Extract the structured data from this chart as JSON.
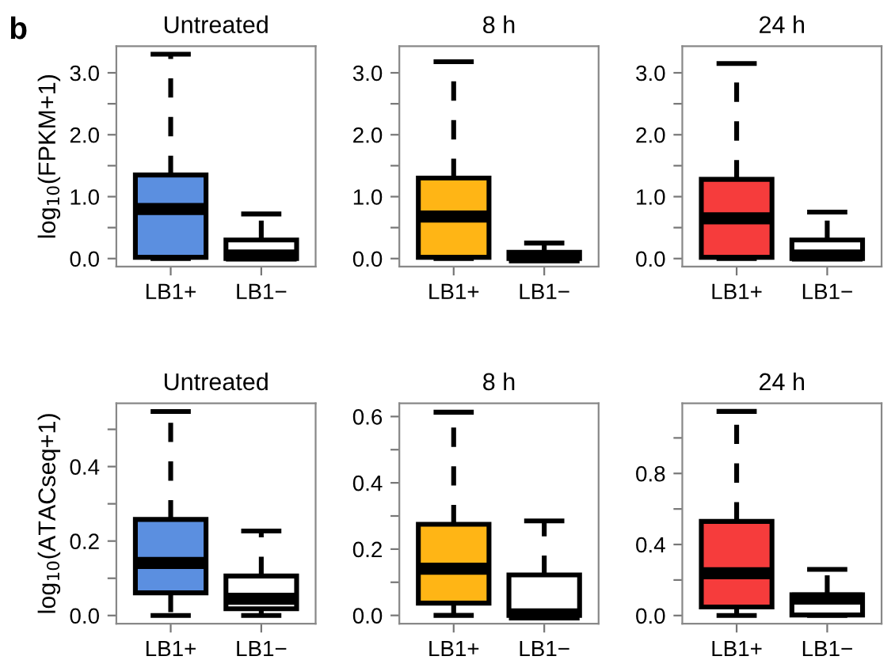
{
  "chart_data": [
    {
      "type": "box",
      "title": "Untreated",
      "ylabel": "log$_{10}$(FPKM+1)",
      "annotations": [
        "b"
      ],
      "categories": [
        "LB1+",
        "LB1−"
      ],
      "colors": [
        "#5b8fe0",
        "#ffffff"
      ],
      "line_style": "dashed",
      "grid": false,
      "boxes": [
        {
          "low": 0,
          "q1": 0.02,
          "median": 0.8,
          "q3": 1.35,
          "high": 3.3
        },
        {
          "low": 0,
          "q1": 0,
          "median": 0.05,
          "q3": 0.3,
          "high": 0.72
        }
      ],
      "ylim": [
        -0.13,
        3.43
      ],
      "yticks": [
        {
          "value": 0,
          "label": "0.0"
        },
        {
          "value": 0.5,
          "label": null
        },
        {
          "value": 1,
          "label": "1.0"
        },
        {
          "value": 1.5,
          "label": null
        },
        {
          "value": 2,
          "label": "2.0"
        },
        {
          "value": 2.5,
          "label": null
        },
        {
          "value": 3,
          "label": "3.0"
        }
      ]
    },
    {
      "type": "box",
      "title": "8 h",
      "categories": [
        "LB1+",
        "LB1−"
      ],
      "colors": [
        "#ffb515",
        "#ffffff"
      ],
      "line_style": "dashed",
      "grid": false,
      "boxes": [
        {
          "low": 0,
          "q1": 0.02,
          "median": 0.68,
          "q3": 1.3,
          "high": 3.18
        },
        {
          "low": 0,
          "q1": 0,
          "median": 0.02,
          "q3": 0.1,
          "high": 0.25
        }
      ],
      "ylim": [
        -0.13,
        3.43
      ],
      "yticks": [
        {
          "value": 0,
          "label": "0.0"
        },
        {
          "value": 0.5,
          "label": null
        },
        {
          "value": 1,
          "label": "1.0"
        },
        {
          "value": 1.5,
          "label": null
        },
        {
          "value": 2,
          "label": "2.0"
        },
        {
          "value": 2.5,
          "label": null
        },
        {
          "value": 3,
          "label": "3.0"
        }
      ]
    },
    {
      "type": "box",
      "title": "24 h",
      "categories": [
        "LB1+",
        "LB1−"
      ],
      "colors": [
        "#f63c3c",
        "#ffffff"
      ],
      "line_style": "dashed",
      "grid": false,
      "boxes": [
        {
          "low": 0,
          "q1": 0.02,
          "median": 0.65,
          "q3": 1.28,
          "high": 3.15
        },
        {
          "low": 0,
          "q1": 0,
          "median": 0.05,
          "q3": 0.3,
          "high": 0.75
        }
      ],
      "ylim": [
        -0.13,
        3.43
      ],
      "yticks": [
        {
          "value": 0,
          "label": "0.0"
        },
        {
          "value": 0.5,
          "label": null
        },
        {
          "value": 1,
          "label": "1.0"
        },
        {
          "value": 1.5,
          "label": null
        },
        {
          "value": 2,
          "label": "2.0"
        },
        {
          "value": 2.5,
          "label": null
        },
        {
          "value": 3,
          "label": "3.0"
        }
      ]
    },
    {
      "type": "box",
      "title": "Untreated",
      "ylabel": "log$_{10}$(ATACseq+1)",
      "categories": [
        "LB1+",
        "LB1−"
      ],
      "colors": [
        "#5b8fe0",
        "#ffffff"
      ],
      "line_style": "dashed",
      "grid": false,
      "boxes": [
        {
          "low": 0,
          "q1": 0.061,
          "median": 0.141,
          "q3": 0.258,
          "high": 0.548
        },
        {
          "low": 0,
          "q1": 0.018,
          "median": 0.045,
          "q3": 0.106,
          "high": 0.227
        }
      ],
      "ylim": [
        -0.022,
        0.57
      ],
      "yticks": [
        {
          "value": 0,
          "label": "0.0"
        },
        {
          "value": 0.1,
          "label": null
        },
        0.2,
        {
          "value": 0.3,
          "label": null
        },
        0.4,
        {
          "value": 0.5,
          "label": null
        }
      ]
    },
    {
      "type": "box",
      "title": "8 h",
      "categories": [
        "LB1+",
        "LB1−"
      ],
      "colors": [
        "#ffb515",
        "#ffffff"
      ],
      "line_style": "dashed",
      "grid": false,
      "boxes": [
        {
          "low": 0,
          "q1": 0.037,
          "median": 0.141,
          "q3": 0.275,
          "high": 0.613
        },
        {
          "low": 0,
          "q1": 0,
          "median": 0.003,
          "q3": 0.122,
          "high": 0.285
        }
      ],
      "ylim": [
        -0.025,
        0.64
      ],
      "yticks": [
        {
          "value": 0,
          "label": "0.0"
        },
        {
          "value": 0.1,
          "label": null
        },
        0.2,
        {
          "value": 0.3,
          "label": null
        },
        0.4,
        {
          "value": 0.5,
          "label": null
        },
        0.6
      ]
    },
    {
      "type": "box",
      "title": "24 h",
      "categories": [
        "LB1+",
        "LB1−"
      ],
      "colors": [
        "#f63c3c",
        "#ffffff"
      ],
      "line_style": "dashed",
      "grid": false,
      "boxes": [
        {
          "low": 0,
          "q1": 0.048,
          "median": 0.238,
          "q3": 0.53,
          "high": 1.149
        },
        {
          "low": 0,
          "q1": 0.003,
          "median": 0.095,
          "q3": 0.117,
          "high": 0.26
        }
      ],
      "ylim": [
        -0.046,
        1.195
      ],
      "yticks": [
        {
          "value": 0,
          "label": "0.0"
        },
        {
          "value": 0.2,
          "label": null
        },
        0.4,
        {
          "value": 0.6,
          "label": null
        },
        0.8,
        {
          "value": 1.0,
          "label": null
        }
      ]
    }
  ]
}
